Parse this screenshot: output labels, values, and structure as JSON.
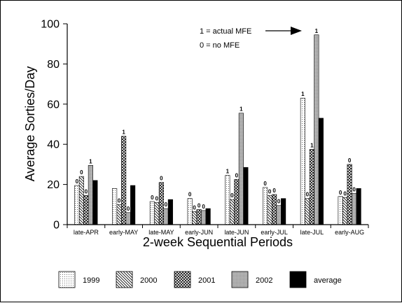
{
  "chart_data": {
    "type": "bar",
    "categories": [
      "late-APR",
      "early-MAY",
      "late-MAY",
      "early-JUN",
      "late-JUN",
      "early-JUL",
      "late-JUL",
      "early-AUG"
    ],
    "series": [
      {
        "name": "1999",
        "pattern": "dots",
        "values": [
          19.5,
          18,
          11.5,
          13,
          24.5,
          18.5,
          63,
          14
        ]
      },
      {
        "name": "2000",
        "pattern": "diag",
        "values": [
          24,
          10,
          11,
          6.5,
          12.5,
          14.5,
          13,
          13.5
        ]
      },
      {
        "name": "2001",
        "pattern": "cross",
        "values": [
          14.5,
          44,
          21,
          7.5,
          22.5,
          15,
          37.5,
          30
        ]
      },
      {
        "name": "2002",
        "pattern": "gray",
        "values": [
          29.5,
          6,
          8,
          7,
          55.5,
          9.5,
          94.5,
          15.5
        ]
      },
      {
        "name": "average",
        "pattern": "solid",
        "values": [
          22,
          19.5,
          12.5,
          8,
          28.5,
          13,
          53,
          18
        ]
      }
    ],
    "bar_labels": [
      [
        "0",
        "0",
        "0",
        "1",
        null
      ],
      [
        null,
        "0",
        "1",
        "0",
        null
      ],
      [
        "0",
        "0",
        "0",
        "0",
        null
      ],
      [
        "0",
        "0",
        "0",
        "0",
        null
      ],
      [
        "1",
        "0",
        "0",
        "1",
        null
      ],
      [
        "0",
        "0",
        "0",
        "0",
        null
      ],
      [
        "1",
        "0",
        "1",
        "1",
        null
      ],
      [
        "0",
        "0",
        "0",
        "0",
        null
      ]
    ],
    "xlabel": "2-week Sequential Periods",
    "ylabel": "Average Sorties/Day",
    "ylim": [
      0,
      100
    ],
    "yticks": [
      "0",
      "20",
      "40",
      "60",
      "80",
      "100"
    ],
    "annotation": {
      "line1": "1 = actual MFE",
      "line2": "0 = no MFE"
    },
    "legend_position": "bottom",
    "grid": false
  }
}
